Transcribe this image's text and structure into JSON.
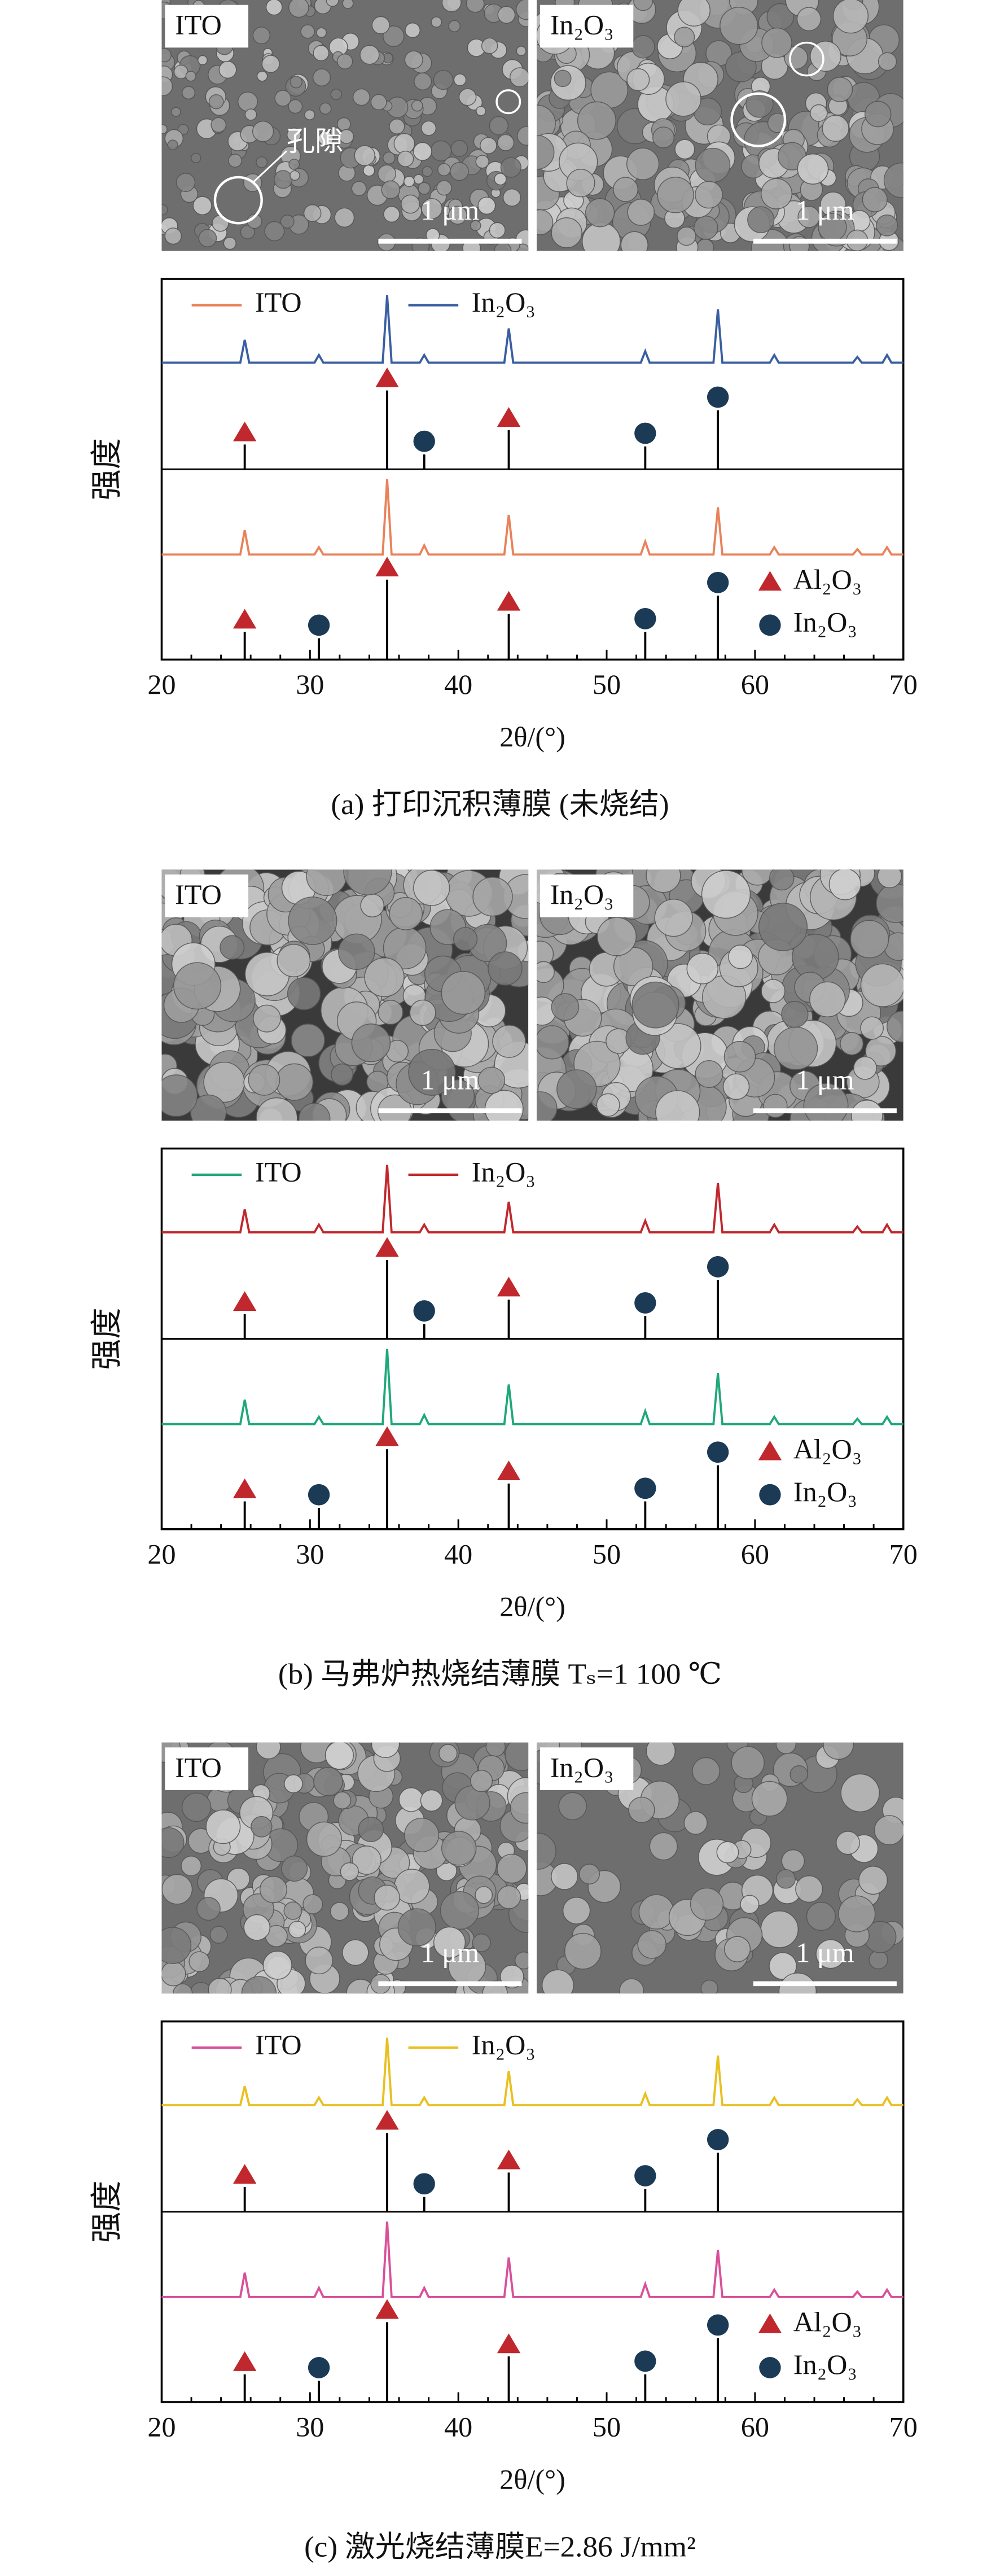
{
  "chart_data": [
    {
      "type": "line",
      "caption": "(a) 打印沉积薄膜 (未烧结)",
      "x_label": "2θ/(°)",
      "y_label": "强度",
      "images": [
        {
          "label": "ITO",
          "scale_bar": "1 μm"
        },
        {
          "label": "In₂O₃",
          "scale_bar": "1 μm"
        }
      ],
      "annotation": "孔隙",
      "xlim": [
        20,
        70
      ],
      "xticks": [
        20,
        30,
        40,
        50,
        60,
        70
      ],
      "ylim": [
        0,
        100
      ],
      "x": [
        20,
        25.3,
        25.6,
        25.9,
        30.3,
        30.6,
        30.9,
        34.9,
        35.2,
        35.5,
        37.4,
        37.7,
        38.0,
        43.1,
        43.4,
        43.7,
        52.3,
        52.6,
        52.9,
        57.2,
        57.5,
        57.8,
        61.0,
        61.3,
        61.6,
        66.6,
        66.9,
        67.2,
        68.6,
        68.9,
        69.2,
        70
      ],
      "series": [
        {
          "name": "ITO",
          "color": "#e8825a",
          "values": [
            27.6,
            27.6,
            34,
            27.6,
            27.6,
            29.5,
            27.6,
            27.6,
            47.4,
            27.6,
            27.6,
            30,
            27.6,
            27.6,
            38,
            27.6,
            27.6,
            31,
            27.6,
            27.6,
            40,
            27.6,
            27.6,
            29.5,
            27.6,
            27.6,
            29,
            27.6,
            27.6,
            29.5,
            27.6,
            27.6
          ]
        },
        {
          "name": "In₂O₃",
          "color": "#3a5fa0",
          "values": [
            78,
            78,
            84,
            78,
            78,
            80,
            78,
            78,
            95.7,
            78,
            78,
            80,
            78,
            78,
            87,
            78,
            78,
            81,
            78,
            78,
            92,
            78,
            78,
            80,
            78,
            78,
            79.5,
            78,
            78,
            80,
            78,
            78
          ]
        }
      ],
      "references": [
        {
          "name": "Al₂O₃",
          "marker": "triangle",
          "color": "#c0282d",
          "sets": [
            {
              "base": 50,
              "x": [
                25.6,
                35.2,
                43.4
              ],
              "values": [
                56.5,
                70.7,
                60.3
              ]
            },
            {
              "base": 0,
              "x": [
                25.6,
                35.2,
                43.4
              ],
              "values": [
                7.3,
                21,
                12
              ]
            }
          ]
        },
        {
          "name": "In₂O₃",
          "marker": "circle",
          "color": "#1b3a55",
          "sets": [
            {
              "base": 50,
              "x": [
                37.7,
                52.6,
                57.5
              ],
              "values": [
                53.9,
                56,
                65.5
              ]
            },
            {
              "base": 0,
              "x": [
                30.6,
                52.6,
                57.5
              ],
              "values": [
                5.6,
                7.3,
                16.8
              ]
            }
          ]
        }
      ]
    },
    {
      "type": "line",
      "caption": "(b) 马弗炉热烧结薄膜 Tₛ=1 100 ℃",
      "x_label": "2θ/(°)",
      "y_label": "强度",
      "images": [
        {
          "label": "ITO",
          "scale_bar": "1 μm"
        },
        {
          "label": "In₂O₃",
          "scale_bar": "1 μm"
        }
      ],
      "xlim": [
        20,
        70
      ],
      "xticks": [
        20,
        30,
        40,
        50,
        60,
        70
      ],
      "ylim": [
        0,
        100
      ],
      "x": [
        20,
        25.3,
        25.6,
        25.9,
        30.3,
        30.6,
        30.9,
        34.9,
        35.2,
        35.5,
        37.4,
        37.7,
        38.0,
        43.1,
        43.4,
        43.7,
        52.3,
        52.6,
        52.9,
        57.2,
        57.5,
        57.8,
        61.0,
        61.3,
        61.6,
        66.6,
        66.9,
        67.2,
        68.6,
        68.9,
        69.2,
        70
      ],
      "series": [
        {
          "name": "ITO",
          "color": "#1fa878",
          "values": [
            27.6,
            27.6,
            34,
            27.6,
            27.6,
            29.5,
            27.6,
            27.6,
            47.4,
            27.6,
            27.6,
            30,
            27.6,
            27.6,
            38,
            27.6,
            27.6,
            31,
            27.6,
            27.6,
            41,
            27.6,
            27.6,
            29.5,
            27.6,
            27.6,
            29,
            27.6,
            27.6,
            29.5,
            27.6,
            27.6
          ]
        },
        {
          "name": "In₂O₃",
          "color": "#c0282d",
          "values": [
            78,
            78,
            84,
            78,
            78,
            80,
            78,
            78,
            95.7,
            78,
            78,
            80,
            78,
            78,
            86,
            78,
            78,
            81,
            78,
            78,
            91,
            78,
            78,
            80,
            78,
            78,
            79.5,
            78,
            78,
            80,
            78,
            78
          ]
        }
      ],
      "references": [
        {
          "name": "Al₂O₃",
          "marker": "triangle",
          "color": "#c0282d",
          "sets": [
            {
              "base": 50,
              "x": [
                25.6,
                35.2,
                43.4
              ],
              "values": [
                56.5,
                70.7,
                60.3
              ]
            },
            {
              "base": 0,
              "x": [
                25.6,
                35.2,
                43.4
              ],
              "values": [
                7.3,
                21,
                12
              ]
            }
          ]
        },
        {
          "name": "In₂O₃",
          "marker": "circle",
          "color": "#1b3a55",
          "sets": [
            {
              "base": 50,
              "x": [
                37.7,
                52.6,
                57.5
              ],
              "values": [
                53.9,
                56,
                65.5
              ]
            },
            {
              "base": 0,
              "x": [
                30.6,
                52.6,
                57.5
              ],
              "values": [
                5.6,
                7.3,
                16.8
              ]
            }
          ]
        }
      ]
    },
    {
      "type": "line",
      "caption": "(c) 激光烧结薄膜E=2.86 J/mm²",
      "x_label": "2θ/(°)",
      "y_label": "强度",
      "images": [
        {
          "label": "ITO",
          "scale_bar": "1 μm"
        },
        {
          "label": "In₂O₃",
          "scale_bar": "1 μm"
        }
      ],
      "xlim": [
        20,
        70
      ],
      "xticks": [
        20,
        30,
        40,
        50,
        60,
        70
      ],
      "ylim": [
        0,
        100
      ],
      "x": [
        20,
        25.3,
        25.6,
        25.9,
        30.3,
        30.6,
        30.9,
        34.9,
        35.2,
        35.5,
        37.4,
        37.7,
        38.0,
        43.1,
        43.4,
        43.7,
        52.3,
        52.6,
        52.9,
        57.2,
        57.5,
        57.8,
        61.0,
        61.3,
        61.6,
        66.6,
        66.9,
        67.2,
        68.6,
        68.9,
        69.2,
        70
      ],
      "series": [
        {
          "name": "ITO",
          "color": "#d9509a",
          "values": [
            27.6,
            27.6,
            34,
            27.6,
            27.6,
            30,
            27.6,
            27.6,
            47.4,
            27.6,
            27.6,
            30,
            27.6,
            27.6,
            38,
            27.6,
            27.6,
            31,
            27.6,
            27.6,
            40,
            27.6,
            27.6,
            29.5,
            27.6,
            27.6,
            29,
            27.6,
            27.6,
            29.5,
            27.6,
            27.6
          ]
        },
        {
          "name": "In₂O₃",
          "color": "#e8c020",
          "values": [
            78,
            78,
            83,
            78,
            78,
            80,
            78,
            78,
            95.7,
            78,
            78,
            80,
            78,
            78,
            87,
            78,
            78,
            81,
            78,
            78,
            91,
            78,
            78,
            80,
            78,
            78,
            79.5,
            78,
            78,
            80,
            78,
            78
          ]
        }
      ],
      "references": [
        {
          "name": "Al₂O₃",
          "marker": "triangle",
          "color": "#c0282d",
          "sets": [
            {
              "base": 50,
              "x": [
                25.6,
                35.2,
                43.4
              ],
              "values": [
                56.5,
                70.7,
                60.3
              ]
            },
            {
              "base": 0,
              "x": [
                25.6,
                35.2,
                43.4
              ],
              "values": [
                7.3,
                21,
                12
              ]
            }
          ]
        },
        {
          "name": "In₂O₃",
          "marker": "circle",
          "color": "#1b3a55",
          "sets": [
            {
              "base": 50,
              "x": [
                37.7,
                52.6,
                57.5
              ],
              "values": [
                53.9,
                56,
                65.5
              ]
            },
            {
              "base": 0,
              "x": [
                30.6,
                52.6,
                57.5
              ],
              "values": [
                5.6,
                7.3,
                16.8
              ]
            }
          ]
        }
      ]
    }
  ]
}
